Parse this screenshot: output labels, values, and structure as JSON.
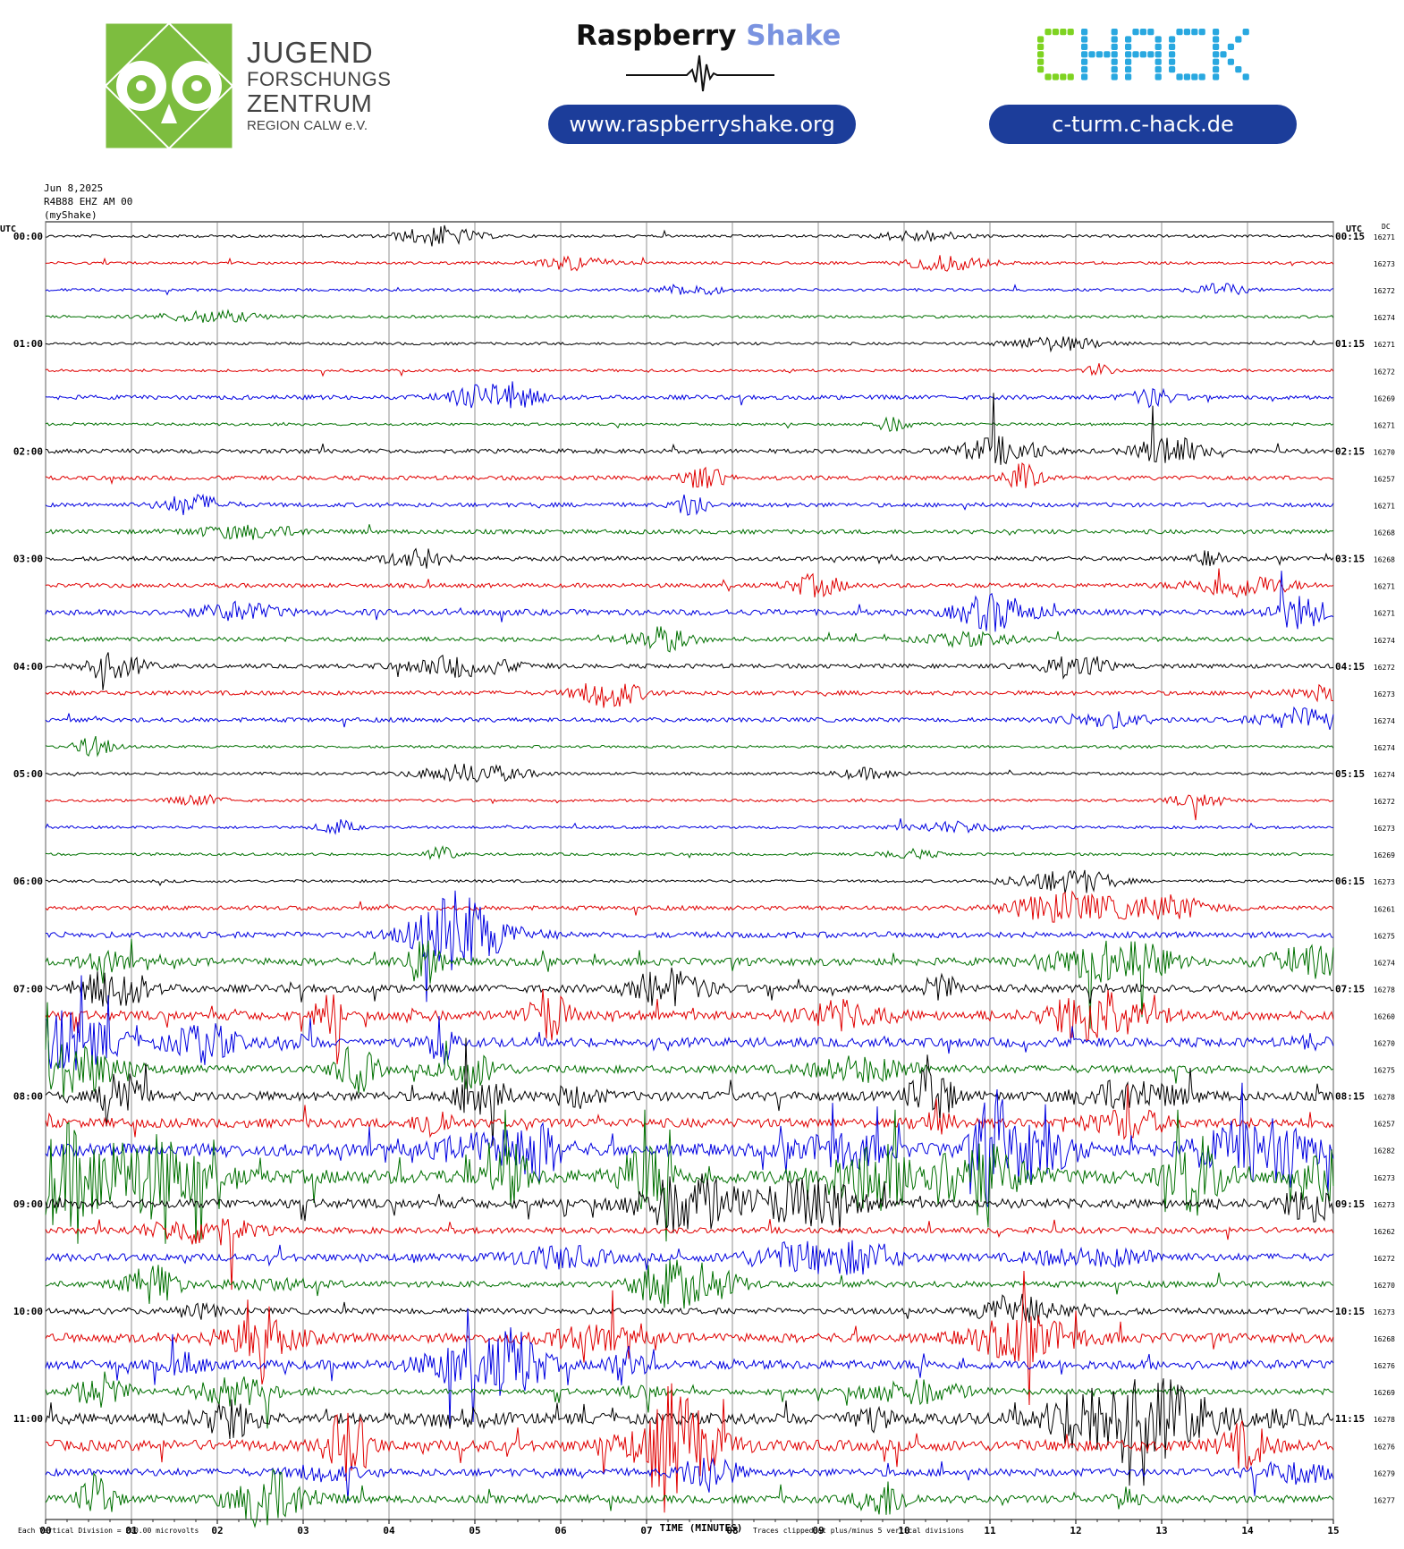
{
  "header": {
    "jfz_lines": [
      "JUGEND",
      "FORSCHUNGS",
      "ZENTRUM",
      "REGION CALW e.V."
    ],
    "rs_title_a": "Raspberry",
    "rs_title_b": "Shake",
    "rs_url": "www.raspberryshake.org",
    "chack_logo": "CHACK",
    "chack_url": "c-turm.c-hack.de",
    "colors": {
      "pill": "#1c3d9a",
      "jfz_green": "#7dbd3f",
      "chack_green": "#7ed321",
      "chack_blue": "#29a8e0"
    }
  },
  "chart_data": {
    "type": "line",
    "title_lines": [
      "Jun 8,2025",
      "R4B88 EHZ AM 00",
      "(myShake)"
    ],
    "left_axis_label": "UTC",
    "right_axis_label": "UTC",
    "dc_label": "DC",
    "xlabel": "TIME (MINUTES)",
    "xticks": [
      "00",
      "01",
      "02",
      "03",
      "04",
      "05",
      "06",
      "07",
      "08",
      "09",
      "10",
      "11",
      "12",
      "13",
      "14",
      "15"
    ],
    "xlim": [
      0,
      15
    ],
    "left_hour_labels": [
      "00:00",
      "01:00",
      "02:00",
      "03:00",
      "04:00",
      "05:00",
      "06:00",
      "07:00",
      "08:00",
      "09:00",
      "10:00",
      "11:00"
    ],
    "right_hour_labels": [
      "00:15",
      "01:15",
      "02:15",
      "03:15",
      "04:15",
      "05:15",
      "06:15",
      "07:15",
      "08:15",
      "09:15",
      "10:15",
      "11:15"
    ],
    "dc_values": [
      16271,
      16273,
      16272,
      16274,
      16271,
      16272,
      16269,
      16271,
      16270,
      16257,
      16271,
      16268,
      16268,
      16271,
      16271,
      16274,
      16272,
      16273,
      16274,
      16274,
      16274,
      16272,
      16273,
      16269,
      16273,
      16261,
      16275,
      16274,
      16278,
      16260,
      16270,
      16275,
      16278,
      16257,
      16282,
      16273,
      16273,
      16262,
      16272,
      16270,
      16273,
      16268,
      16276,
      16269,
      16278,
      16276,
      16279,
      16277
    ],
    "trace_colors": [
      "#000000",
      "#e00000",
      "#0000e0",
      "#007000"
    ],
    "trace_noise_level": [
      1,
      1,
      1,
      1,
      1,
      1,
      2,
      1,
      2,
      2,
      2,
      2,
      2,
      2,
      3,
      2,
      2,
      2,
      2,
      1,
      1,
      1,
      1,
      1,
      1,
      2,
      3,
      4,
      4,
      5,
      5,
      4,
      5,
      5,
      7,
      8,
      5,
      3,
      4,
      3,
      3,
      5,
      5,
      3,
      6,
      6,
      4,
      4
    ],
    "bottom_left_note": "Each Vertical Division =  200.00 microvolts",
    "bottom_right_note": "Traces clipped at plus/minus 5 vertical divisions",
    "grid": "vertical lines each minute"
  }
}
